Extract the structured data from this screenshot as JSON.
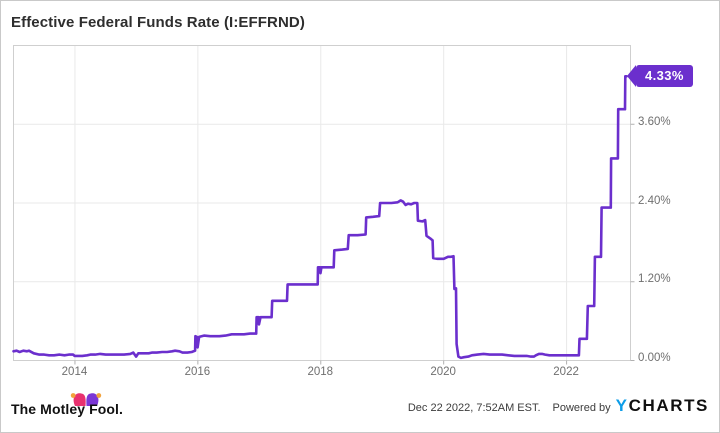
{
  "header": {
    "title": "Effective Federal Funds Rate (I:EFFRND)"
  },
  "footer": {
    "brand_text": "The Motley Fool.",
    "timestamp": "Dec 22 2022, 7:52AM EST.",
    "powered_by_label": "Powered by",
    "ycharts_y": "Y",
    "ycharts_charts": "CHARTS"
  },
  "colors": {
    "line": "#6b2fcd",
    "badge_bg": "#6b2fcd",
    "badge_text": "#ffffff",
    "grid": "#e9e9e9",
    "plot_border": "#cfcfcf",
    "tick_mark": "#b0b0b0",
    "tick_text": "#6f6f6f",
    "title_text": "#2e2e2e",
    "ycharts_blue": "#0d9de8",
    "fool_pink": "#e8316f",
    "fool_purple": "#7b36d6",
    "fool_gold": "#f2a23c"
  },
  "chart_data": {
    "type": "line",
    "title": "Effective Federal Funds Rate (I:EFFRND)",
    "xlabel": "",
    "ylabel": "",
    "grid": true,
    "xlim": [
      2013.0,
      2023.04
    ],
    "ylim": [
      0,
      4.8
    ],
    "x_ticks": [
      {
        "label": "2014",
        "value": 2014
      },
      {
        "label": "2016",
        "value": 2016
      },
      {
        "label": "2018",
        "value": 2018
      },
      {
        "label": "2020",
        "value": 2020
      },
      {
        "label": "2022",
        "value": 2022
      }
    ],
    "y_ticks": [
      {
        "label": "0.00%",
        "value": 0
      },
      {
        "label": "1.20%",
        "value": 1.2
      },
      {
        "label": "2.40%",
        "value": 2.4
      },
      {
        "label": "3.60%",
        "value": 3.6
      }
    ],
    "last_value": {
      "label": "4.33%",
      "value": 4.33
    },
    "series": [
      {
        "name": "Effective Federal Funds Rate",
        "color": "#6b2fcd",
        "points": [
          [
            2013.0,
            0.14
          ],
          [
            2013.05,
            0.15
          ],
          [
            2013.1,
            0.13
          ],
          [
            2013.16,
            0.15
          ],
          [
            2013.22,
            0.14
          ],
          [
            2013.25,
            0.15
          ],
          [
            2013.33,
            0.11
          ],
          [
            2013.42,
            0.09
          ],
          [
            2013.5,
            0.09
          ],
          [
            2013.58,
            0.08
          ],
          [
            2013.66,
            0.08
          ],
          [
            2013.75,
            0.09
          ],
          [
            2013.83,
            0.08
          ],
          [
            2013.9,
            0.09
          ],
          [
            2013.97,
            0.09
          ],
          [
            2013.995,
            0.07
          ],
          [
            2014.03,
            0.07
          ],
          [
            2014.12,
            0.07
          ],
          [
            2014.2,
            0.08
          ],
          [
            2014.25,
            0.09
          ],
          [
            2014.33,
            0.09
          ],
          [
            2014.41,
            0.1
          ],
          [
            2014.5,
            0.09
          ],
          [
            2014.58,
            0.09
          ],
          [
            2014.7,
            0.09
          ],
          [
            2014.8,
            0.09
          ],
          [
            2014.9,
            0.1
          ],
          [
            2014.95,
            0.12
          ],
          [
            2014.995,
            0.06
          ],
          [
            2015.03,
            0.11
          ],
          [
            2015.12,
            0.11
          ],
          [
            2015.2,
            0.11
          ],
          [
            2015.25,
            0.12
          ],
          [
            2015.33,
            0.12
          ],
          [
            2015.42,
            0.13
          ],
          [
            2015.5,
            0.13
          ],
          [
            2015.58,
            0.14
          ],
          [
            2015.63,
            0.15
          ],
          [
            2015.7,
            0.14
          ],
          [
            2015.75,
            0.12
          ],
          [
            2015.83,
            0.12
          ],
          [
            2015.9,
            0.13
          ],
          [
            2015.955,
            0.15
          ],
          [
            2015.96,
            0.37
          ],
          [
            2015.985,
            0.36
          ],
          [
            2015.995,
            0.2
          ],
          [
            2016.02,
            0.36
          ],
          [
            2016.1,
            0.38
          ],
          [
            2016.2,
            0.37
          ],
          [
            2016.25,
            0.37
          ],
          [
            2016.35,
            0.37
          ],
          [
            2016.45,
            0.38
          ],
          [
            2016.55,
            0.4
          ],
          [
            2016.65,
            0.4
          ],
          [
            2016.75,
            0.4
          ],
          [
            2016.85,
            0.41
          ],
          [
            2016.95,
            0.41
          ],
          [
            2016.955,
            0.66
          ],
          [
            2016.99,
            0.66
          ],
          [
            2016.995,
            0.55
          ],
          [
            2017.02,
            0.66
          ],
          [
            2017.1,
            0.66
          ],
          [
            2017.2,
            0.66
          ],
          [
            2017.21,
            0.91
          ],
          [
            2017.3,
            0.91
          ],
          [
            2017.4,
            0.91
          ],
          [
            2017.45,
            0.91
          ],
          [
            2017.46,
            1.16
          ],
          [
            2017.6,
            1.16
          ],
          [
            2017.75,
            1.16
          ],
          [
            2017.9,
            1.16
          ],
          [
            2017.95,
            1.16
          ],
          [
            2017.955,
            1.42
          ],
          [
            2017.99,
            1.42
          ],
          [
            2017.995,
            1.33
          ],
          [
            2018.01,
            1.42
          ],
          [
            2018.1,
            1.42
          ],
          [
            2018.21,
            1.42
          ],
          [
            2018.22,
            1.68
          ],
          [
            2018.35,
            1.69
          ],
          [
            2018.44,
            1.7
          ],
          [
            2018.455,
            1.91
          ],
          [
            2018.6,
            1.91
          ],
          [
            2018.73,
            1.92
          ],
          [
            2018.74,
            2.18
          ],
          [
            2018.85,
            2.19
          ],
          [
            2018.95,
            2.2
          ],
          [
            2018.965,
            2.4
          ],
          [
            2018.99,
            2.4
          ],
          [
            2019.05,
            2.4
          ],
          [
            2019.15,
            2.4
          ],
          [
            2019.25,
            2.41
          ],
          [
            2019.3,
            2.44
          ],
          [
            2019.34,
            2.42
          ],
          [
            2019.38,
            2.37
          ],
          [
            2019.42,
            2.39
          ],
          [
            2019.47,
            2.38
          ],
          [
            2019.52,
            2.4
          ],
          [
            2019.57,
            2.4
          ],
          [
            2019.58,
            2.13
          ],
          [
            2019.65,
            2.12
          ],
          [
            2019.7,
            2.14
          ],
          [
            2019.72,
            1.9
          ],
          [
            2019.78,
            1.86
          ],
          [
            2019.82,
            1.83
          ],
          [
            2019.83,
            1.56
          ],
          [
            2019.9,
            1.55
          ],
          [
            2019.97,
            1.55
          ],
          [
            2020.0,
            1.55
          ],
          [
            2020.07,
            1.58
          ],
          [
            2020.12,
            1.58
          ],
          [
            2020.16,
            1.59
          ],
          [
            2020.175,
            1.09
          ],
          [
            2020.2,
            1.1
          ],
          [
            2020.21,
            0.25
          ],
          [
            2020.24,
            0.06
          ],
          [
            2020.28,
            0.04
          ],
          [
            2020.33,
            0.05
          ],
          [
            2020.4,
            0.06
          ],
          [
            2020.46,
            0.08
          ],
          [
            2020.55,
            0.09
          ],
          [
            2020.65,
            0.1
          ],
          [
            2020.75,
            0.09
          ],
          [
            2020.85,
            0.09
          ],
          [
            2020.95,
            0.09
          ],
          [
            2021.05,
            0.08
          ],
          [
            2021.15,
            0.07
          ],
          [
            2021.25,
            0.07
          ],
          [
            2021.35,
            0.07
          ],
          [
            2021.42,
            0.06
          ],
          [
            2021.47,
            0.06
          ],
          [
            2021.5,
            0.08
          ],
          [
            2021.55,
            0.1
          ],
          [
            2021.6,
            0.1
          ],
          [
            2021.65,
            0.09
          ],
          [
            2021.72,
            0.08
          ],
          [
            2021.8,
            0.08
          ],
          [
            2021.9,
            0.08
          ],
          [
            2022.0,
            0.08
          ],
          [
            2022.1,
            0.08
          ],
          [
            2022.2,
            0.08
          ],
          [
            2022.21,
            0.33
          ],
          [
            2022.28,
            0.33
          ],
          [
            2022.33,
            0.33
          ],
          [
            2022.345,
            0.83
          ],
          [
            2022.4,
            0.83
          ],
          [
            2022.45,
            0.83
          ],
          [
            2022.46,
            1.58
          ],
          [
            2022.52,
            1.58
          ],
          [
            2022.56,
            1.58
          ],
          [
            2022.57,
            2.33
          ],
          [
            2022.65,
            2.33
          ],
          [
            2022.72,
            2.33
          ],
          [
            2022.725,
            3.08
          ],
          [
            2022.78,
            3.08
          ],
          [
            2022.835,
            3.08
          ],
          [
            2022.84,
            3.83
          ],
          [
            2022.9,
            3.83
          ],
          [
            2022.95,
            3.83
          ],
          [
            2022.955,
            4.33
          ],
          [
            2022.975,
            4.33
          ]
        ]
      }
    ]
  }
}
